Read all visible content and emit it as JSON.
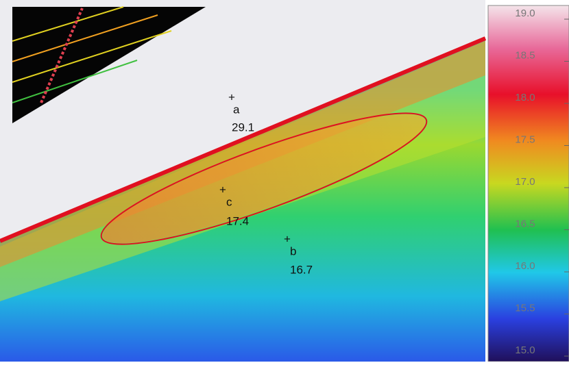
{
  "markers": [
    {
      "letter": "a",
      "value": "29.1"
    },
    {
      "letter": "c",
      "value": "17.4"
    },
    {
      "letter": "b",
      "value": "16.7"
    }
  ],
  "scale": [
    "19.0",
    "18.5",
    "18.0",
    "17.5",
    "17.0",
    "16.5",
    "16.0",
    "15.5",
    "15.0"
  ]
}
